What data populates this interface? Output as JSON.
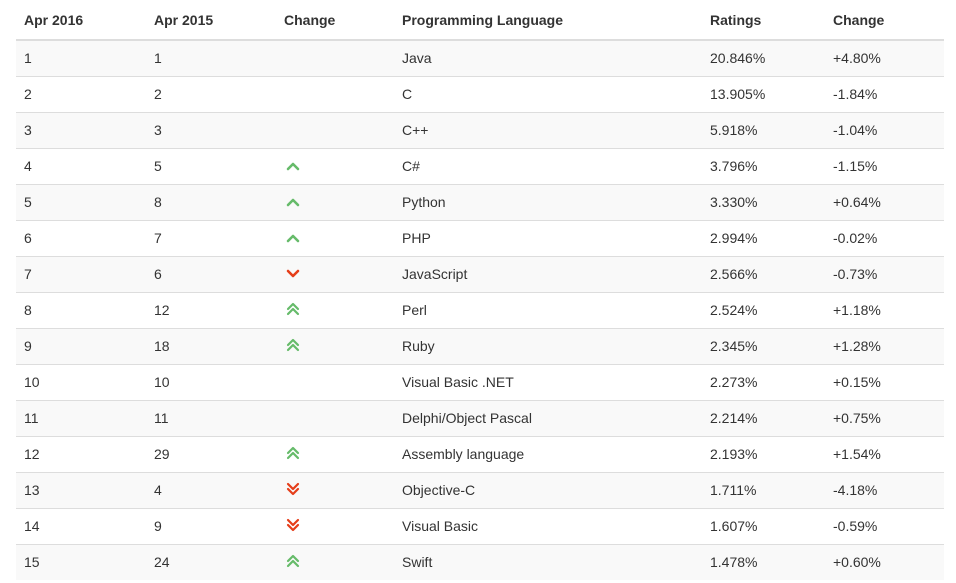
{
  "headers": [
    "Apr 2016",
    "Apr 2015",
    "Change",
    "Programming Language",
    "Ratings",
    "Change"
  ],
  "colors": {
    "up": "#66bb6a",
    "down": "#e53e1a",
    "text": "#333333",
    "stripe": "#f9f9f9",
    "border": "#dddddd"
  },
  "rows": [
    {
      "rank": "1",
      "prev": "1",
      "trend": "none",
      "language": "Java",
      "rating": "20.846%",
      "change": "+4.80%"
    },
    {
      "rank": "2",
      "prev": "2",
      "trend": "none",
      "language": "C",
      "rating": "13.905%",
      "change": "-1.84%"
    },
    {
      "rank": "3",
      "prev": "3",
      "trend": "none",
      "language": "C++",
      "rating": "5.918%",
      "change": "-1.04%"
    },
    {
      "rank": "4",
      "prev": "5",
      "trend": "up",
      "language": "C#",
      "rating": "3.796%",
      "change": "-1.15%"
    },
    {
      "rank": "5",
      "prev": "8",
      "trend": "up",
      "language": "Python",
      "rating": "3.330%",
      "change": "+0.64%"
    },
    {
      "rank": "6",
      "prev": "7",
      "trend": "up",
      "language": "PHP",
      "rating": "2.994%",
      "change": "-0.02%"
    },
    {
      "rank": "7",
      "prev": "6",
      "trend": "down",
      "language": "JavaScript",
      "rating": "2.566%",
      "change": "-0.73%"
    },
    {
      "rank": "8",
      "prev": "12",
      "trend": "double-up",
      "language": "Perl",
      "rating": "2.524%",
      "change": "+1.18%"
    },
    {
      "rank": "9",
      "prev": "18",
      "trend": "double-up",
      "language": "Ruby",
      "rating": "2.345%",
      "change": "+1.28%"
    },
    {
      "rank": "10",
      "prev": "10",
      "trend": "none",
      "language": "Visual Basic .NET",
      "rating": "2.273%",
      "change": "+0.15%"
    },
    {
      "rank": "11",
      "prev": "11",
      "trend": "none",
      "language": "Delphi/Object Pascal",
      "rating": "2.214%",
      "change": "+0.75%"
    },
    {
      "rank": "12",
      "prev": "29",
      "trend": "double-up",
      "language": "Assembly language",
      "rating": "2.193%",
      "change": "+1.54%"
    },
    {
      "rank": "13",
      "prev": "4",
      "trend": "double-down",
      "language": "Objective-C",
      "rating": "1.711%",
      "change": "-4.18%"
    },
    {
      "rank": "14",
      "prev": "9",
      "trend": "double-down",
      "language": "Visual Basic",
      "rating": "1.607%",
      "change": "-0.59%"
    },
    {
      "rank": "15",
      "prev": "24",
      "trend": "double-up",
      "language": "Swift",
      "rating": "1.478%",
      "change": "+0.60%"
    }
  ]
}
